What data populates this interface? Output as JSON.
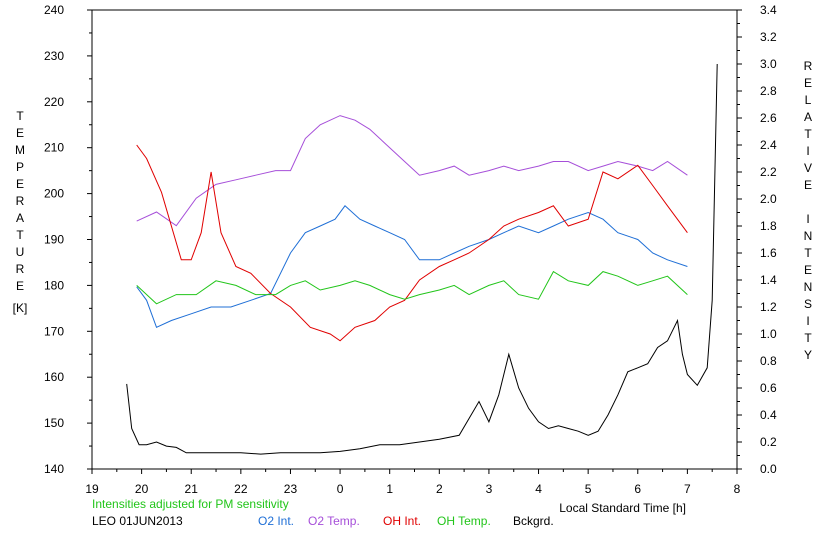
{
  "chart_data": {
    "type": "line",
    "title": "",
    "xlabel": "Local Standard Time [h]",
    "ylabel_left": "TEMPERATURE",
    "ylabel_left_unit": "[K]",
    "ylabel_right": "RELATIVE INTENSITY",
    "note": "Intensities adjusted for PM sensitivity",
    "station_date": "LEO 01JUN2013",
    "x_ticks": [
      "19",
      "20",
      "21",
      "22",
      "23",
      "0",
      "1",
      "2",
      "3",
      "4",
      "5",
      "6",
      "7",
      "8"
    ],
    "x_range": [
      19,
      32
    ],
    "y_left_range": [
      140,
      240
    ],
    "y_left_ticks": [
      "140",
      "150",
      "160",
      "170",
      "180",
      "190",
      "200",
      "210",
      "220",
      "230",
      "240"
    ],
    "y_right_range": [
      0.0,
      3.4
    ],
    "y_right_ticks": [
      "0.0",
      "0.2",
      "0.4",
      "0.6",
      "0.8",
      "1.0",
      "1.2",
      "1.4",
      "1.6",
      "1.8",
      "2.0",
      "2.2",
      "2.4",
      "2.6",
      "2.8",
      "3.0",
      "3.2",
      "3.4"
    ],
    "grid": false,
    "legend_position": "bottom",
    "legend": [
      {
        "label": "O2 Int.",
        "color": "#1f6fd6"
      },
      {
        "label": "O2 Temp.",
        "color": "#a64fd9"
      },
      {
        "label": "OH Int.",
        "color": "#e00000"
      },
      {
        "label": "OH Temp.",
        "color": "#22c51a"
      },
      {
        "label": "Bckgrd.",
        "color": "#000000"
      }
    ],
    "series": [
      {
        "name": "O2 Temp.",
        "axis": "left",
        "color": "#a64fd9",
        "x": [
          19.9,
          20.3,
          20.7,
          21.1,
          21.5,
          21.9,
          22.3,
          22.7,
          23.0,
          23.3,
          23.6,
          24.0,
          24.3,
          24.6,
          25.0,
          25.3,
          25.6,
          26.0,
          26.3,
          26.6,
          27.0,
          27.3,
          27.6,
          28.0,
          28.3,
          28.6,
          29.0,
          29.3,
          29.6,
          30.0,
          30.3,
          30.6,
          31.0
        ],
        "y": [
          194,
          196,
          193,
          199,
          202,
          203,
          204,
          205,
          205,
          212,
          215,
          217,
          216,
          214,
          210,
          207,
          204,
          205,
          206,
          204,
          205,
          206,
          205,
          206,
          207,
          207,
          205,
          206,
          207,
          206,
          205,
          207,
          204
        ]
      },
      {
        "name": "O2 Int.",
        "axis": "right",
        "color": "#1f6fd6",
        "x": [
          19.9,
          20.1,
          20.3,
          20.6,
          21.0,
          21.4,
          21.8,
          22.2,
          22.6,
          23.0,
          23.3,
          23.6,
          23.9,
          24.1,
          24.4,
          24.7,
          25.0,
          25.3,
          25.6,
          26.0,
          26.3,
          26.6,
          27.0,
          27.3,
          27.6,
          28.0,
          28.3,
          28.6,
          29.0,
          29.3,
          29.6,
          30.0,
          30.3,
          30.6,
          31.0
        ],
        "y": [
          1.35,
          1.25,
          1.05,
          1.1,
          1.15,
          1.2,
          1.2,
          1.25,
          1.3,
          1.6,
          1.75,
          1.8,
          1.85,
          1.95,
          1.85,
          1.8,
          1.75,
          1.7,
          1.55,
          1.55,
          1.6,
          1.65,
          1.7,
          1.75,
          1.8,
          1.75,
          1.8,
          1.85,
          1.9,
          1.85,
          1.75,
          1.7,
          1.6,
          1.55,
          1.5
        ]
      },
      {
        "name": "OH Int.",
        "axis": "right",
        "color": "#e00000",
        "x": [
          19.9,
          20.1,
          20.4,
          20.8,
          21.0,
          21.2,
          21.4,
          21.6,
          21.9,
          22.2,
          22.6,
          23.0,
          23.4,
          23.8,
          24.0,
          24.3,
          24.7,
          25.0,
          25.3,
          25.6,
          26.0,
          26.3,
          26.6,
          27.0,
          27.3,
          27.6,
          28.0,
          28.3,
          28.6,
          29.0,
          29.3,
          29.6,
          30.0,
          30.3,
          30.6,
          31.0
        ],
        "y": [
          2.4,
          2.3,
          2.05,
          1.55,
          1.55,
          1.75,
          2.2,
          1.75,
          1.5,
          1.45,
          1.3,
          1.2,
          1.05,
          1.0,
          0.95,
          1.05,
          1.1,
          1.2,
          1.25,
          1.4,
          1.5,
          1.55,
          1.6,
          1.7,
          1.8,
          1.85,
          1.9,
          1.95,
          1.8,
          1.85,
          2.2,
          2.15,
          2.25,
          2.1,
          1.95,
          1.75
        ]
      },
      {
        "name": "OH Temp.",
        "axis": "left",
        "color": "#22c51a",
        "x": [
          19.9,
          20.3,
          20.7,
          21.1,
          21.5,
          21.9,
          22.3,
          22.7,
          23.0,
          23.3,
          23.6,
          24.0,
          24.3,
          24.6,
          25.0,
          25.3,
          25.6,
          26.0,
          26.3,
          26.6,
          27.0,
          27.3,
          27.6,
          28.0,
          28.3,
          28.6,
          29.0,
          29.3,
          29.6,
          30.0,
          30.3,
          30.6,
          31.0
        ],
        "y": [
          180,
          176,
          178,
          178,
          181,
          180,
          178,
          178,
          180,
          181,
          179,
          180,
          181,
          180,
          178,
          177,
          178,
          179,
          180,
          178,
          180,
          181,
          178,
          177,
          183,
          181,
          180,
          183,
          182,
          180,
          181,
          182,
          178
        ]
      },
      {
        "name": "Bckgrd.",
        "axis": "right",
        "color": "#000000",
        "x": [
          19.7,
          19.8,
          19.95,
          20.1,
          20.3,
          20.5,
          20.7,
          20.9,
          21.2,
          21.6,
          22.0,
          22.4,
          22.8,
          23.2,
          23.6,
          24.0,
          24.4,
          24.8,
          25.2,
          25.6,
          26.0,
          26.4,
          26.8,
          27.0,
          27.2,
          27.4,
          27.6,
          27.8,
          28.0,
          28.2,
          28.4,
          28.6,
          28.8,
          29.0,
          29.2,
          29.4,
          29.6,
          29.8,
          30.0,
          30.2,
          30.4,
          30.6,
          30.8,
          30.9,
          31.0,
          31.2,
          31.4,
          31.5,
          31.6
        ],
        "y": [
          0.63,
          0.3,
          0.18,
          0.18,
          0.2,
          0.17,
          0.16,
          0.12,
          0.12,
          0.12,
          0.12,
          0.11,
          0.12,
          0.12,
          0.12,
          0.13,
          0.15,
          0.18,
          0.18,
          0.2,
          0.22,
          0.25,
          0.5,
          0.35,
          0.55,
          0.85,
          0.6,
          0.45,
          0.35,
          0.3,
          0.32,
          0.3,
          0.28,
          0.25,
          0.28,
          0.4,
          0.55,
          0.72,
          0.75,
          0.78,
          0.9,
          0.95,
          1.1,
          0.85,
          0.7,
          0.62,
          0.75,
          1.25,
          3.0
        ]
      }
    ]
  }
}
